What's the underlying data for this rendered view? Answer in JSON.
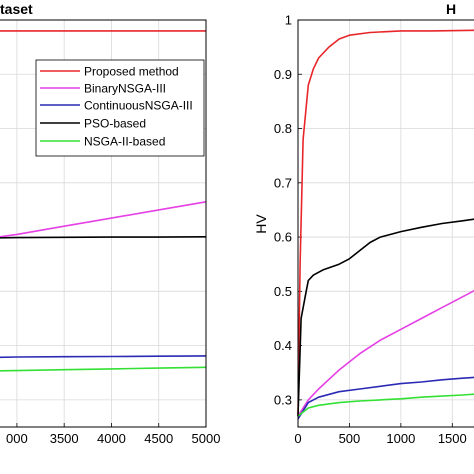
{
  "chart_data": [
    {
      "type": "line",
      "title": "taset",
      "xlabel": "",
      "ylabel": "",
      "xlim": [
        2800,
        5000
      ],
      "ylim": [
        0.25,
        1.0
      ],
      "xticks": [
        "000",
        "3500",
        "4000",
        "4500",
        "5000"
      ],
      "xtick_values": [
        3000,
        3500,
        4000,
        4500,
        5000
      ],
      "grid": true,
      "legend_position": "top-right",
      "series": [
        {
          "name": "Proposed method",
          "color": "#e8262a",
          "x": [
            2800,
            5000
          ],
          "y": [
            0.98,
            0.98
          ]
        },
        {
          "name": "BinaryNSGA-III",
          "color": "#e640e6",
          "x": [
            2800,
            3000,
            3500,
            4000,
            4500,
            5000
          ],
          "y": [
            0.6,
            0.605,
            0.62,
            0.635,
            0.65,
            0.665
          ]
        },
        {
          "name": "ContinuousNSGA-III",
          "color": "#2a2ab4",
          "x": [
            2800,
            3000,
            3500,
            4000,
            4500,
            5000
          ],
          "y": [
            0.3785,
            0.379,
            0.3795,
            0.38,
            0.3805,
            0.381
          ]
        },
        {
          "name": "PSO-based",
          "color": "#000000",
          "x": [
            2800,
            3000,
            3500,
            4000,
            4500,
            5000
          ],
          "y": [
            0.5985,
            0.599,
            0.5995,
            0.6,
            0.6,
            0.6005
          ]
        },
        {
          "name": "NSGA-II-based",
          "color": "#33e033",
          "x": [
            2800,
            3000,
            3500,
            4000,
            4500,
            5000
          ],
          "y": [
            0.3535,
            0.354,
            0.3555,
            0.357,
            0.3585,
            0.36
          ]
        }
      ],
      "legend": [
        "Proposed method",
        "BinaryNSGA-III",
        "ContinuousNSGA-III",
        "PSO-based",
        "NSGA-II-based"
      ]
    },
    {
      "type": "line",
      "title": "H",
      "xlabel": "",
      "ylabel": "HV",
      "xlim": [
        0,
        1750
      ],
      "ylim": [
        0.25,
        1.0
      ],
      "xticks": [
        "0",
        "500",
        "1000",
        "1500"
      ],
      "xtick_values": [
        0,
        500,
        1000,
        1500
      ],
      "yticks": [
        "0.3",
        "0.4",
        "0.5",
        "0.6",
        "0.7",
        "0.8",
        "0.9",
        "1"
      ],
      "ytick_values": [
        0.3,
        0.4,
        0.5,
        0.6,
        0.7,
        0.8,
        0.9,
        1.0
      ],
      "grid": true,
      "series": [
        {
          "name": "Proposed method",
          "color": "#e8262a",
          "x": [
            0,
            20,
            50,
            100,
            150,
            200,
            300,
            400,
            500,
            700,
            1000,
            1300,
            1750
          ],
          "y": [
            0.27,
            0.55,
            0.78,
            0.88,
            0.91,
            0.93,
            0.95,
            0.965,
            0.972,
            0.977,
            0.98,
            0.98,
            0.981
          ]
        },
        {
          "name": "BinaryNSGA-III",
          "color": "#e640e6",
          "x": [
            0,
            100,
            200,
            400,
            600,
            800,
            1000,
            1200,
            1400,
            1600,
            1750
          ],
          "y": [
            0.27,
            0.3,
            0.32,
            0.355,
            0.385,
            0.41,
            0.43,
            0.45,
            0.47,
            0.49,
            0.505
          ]
        },
        {
          "name": "ContinuousNSGA-III",
          "color": "#2a2ab4",
          "x": [
            0,
            100,
            200,
            400,
            600,
            800,
            1000,
            1200,
            1400,
            1600,
            1750
          ],
          "y": [
            0.265,
            0.295,
            0.305,
            0.315,
            0.32,
            0.325,
            0.33,
            0.333,
            0.337,
            0.34,
            0.342
          ]
        },
        {
          "name": "PSO-based",
          "color": "#000000",
          "x": [
            0,
            30,
            80,
            100,
            150,
            250,
            400,
            500,
            600,
            700,
            800,
            1000,
            1200,
            1400,
            1600,
            1750
          ],
          "y": [
            0.27,
            0.45,
            0.5,
            0.52,
            0.53,
            0.54,
            0.55,
            0.56,
            0.575,
            0.59,
            0.6,
            0.61,
            0.618,
            0.625,
            0.63,
            0.634
          ]
        },
        {
          "name": "NSGA-II-based",
          "color": "#33e033",
          "x": [
            0,
            100,
            200,
            400,
            600,
            800,
            1000,
            1200,
            1400,
            1600,
            1750
          ],
          "y": [
            0.27,
            0.285,
            0.29,
            0.295,
            0.298,
            0.3,
            0.302,
            0.305,
            0.307,
            0.309,
            0.311
          ]
        }
      ]
    }
  ]
}
